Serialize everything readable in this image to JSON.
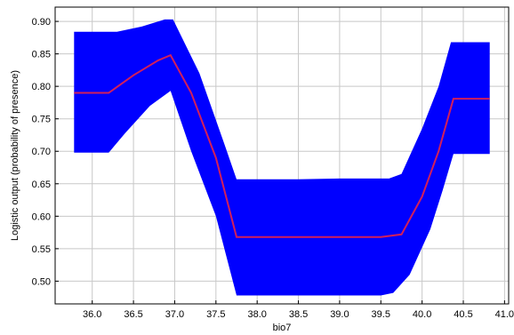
{
  "chart_data": {
    "type": "line",
    "title": "",
    "xlabel": "bio7",
    "ylabel": "Logistic output (probability of presence)",
    "xlim": [
      35.55,
      41.05
    ],
    "ylim": [
      0.465,
      0.922
    ],
    "xticks": [
      "36.0",
      "36.5",
      "37.0",
      "37.5",
      "38.0",
      "38.5",
      "39.0",
      "39.5",
      "40.0",
      "40.5",
      "41.0"
    ],
    "yticks": [
      "0.50",
      "0.55",
      "0.60",
      "0.65",
      "0.70",
      "0.75",
      "0.80",
      "0.85",
      "0.90"
    ],
    "grid": true,
    "colors": {
      "band": "#0000ff",
      "line": "#d21f5a",
      "grid": "#c8c8c8",
      "frame": "#000000"
    },
    "series": [
      {
        "role": "mean",
        "x": [
          35.78,
          36.2,
          36.5,
          36.8,
          36.95,
          37.2,
          37.5,
          37.75,
          38.5,
          39.5,
          39.75,
          40.0,
          40.2,
          40.38,
          40.82
        ],
        "y": [
          0.79,
          0.79,
          0.817,
          0.84,
          0.848,
          0.79,
          0.69,
          0.568,
          0.568,
          0.568,
          0.572,
          0.63,
          0.7,
          0.781,
          0.781
        ]
      },
      {
        "role": "upper",
        "x": [
          35.78,
          36.3,
          36.6,
          36.88,
          36.98,
          37.3,
          37.6,
          37.75,
          38.5,
          39.0,
          39.6,
          39.75,
          40.0,
          40.2,
          40.35,
          40.82
        ],
        "y": [
          0.884,
          0.884,
          0.892,
          0.903,
          0.903,
          0.82,
          0.712,
          0.657,
          0.657,
          0.658,
          0.658,
          0.665,
          0.735,
          0.8,
          0.868,
          0.868
        ]
      },
      {
        "role": "lower",
        "x": [
          35.78,
          36.2,
          36.4,
          36.7,
          36.95,
          37.2,
          37.5,
          37.75,
          38.5,
          39.5,
          39.65,
          39.85,
          40.1,
          40.25,
          40.38,
          40.82
        ],
        "y": [
          0.698,
          0.698,
          0.728,
          0.77,
          0.793,
          0.7,
          0.6,
          0.478,
          0.478,
          0.478,
          0.482,
          0.51,
          0.58,
          0.64,
          0.696,
          0.696
        ]
      }
    ]
  }
}
